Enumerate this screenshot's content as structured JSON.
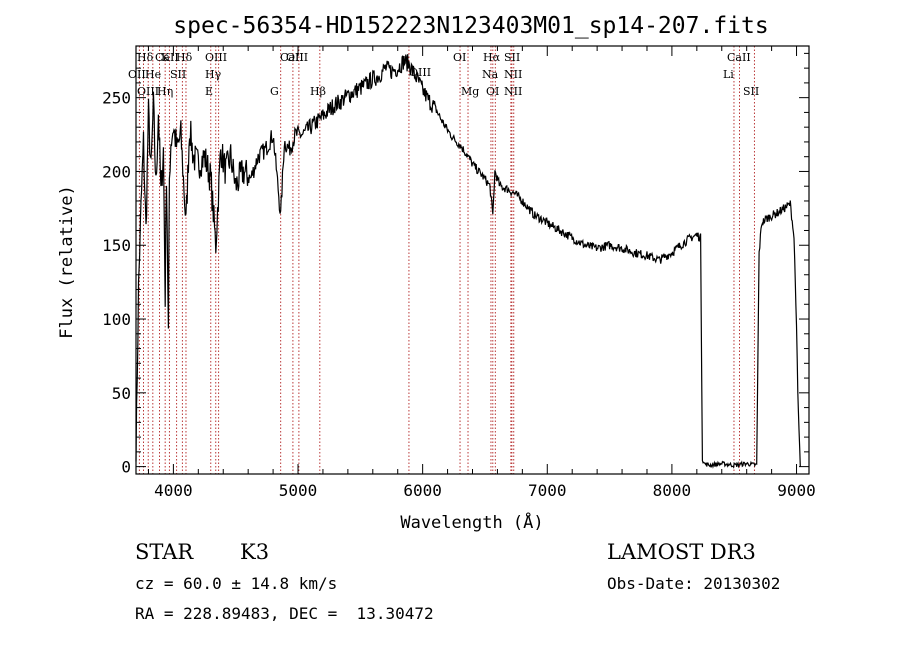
{
  "chart_data": {
    "type": "line",
    "title": "spec-56354-HD152223N123403M01_sp14-207.fits",
    "xlabel": "Wavelength (Å)",
    "ylabel": "Flux (relative)",
    "xlim": [
      3700,
      9100
    ],
    "ylim": [
      -5,
      285
    ],
    "x_ticks": [
      4000,
      5000,
      6000,
      7000,
      8000,
      9000
    ],
    "y_ticks": [
      0,
      50,
      100,
      150,
      200,
      250
    ],
    "grid": false,
    "series": [
      {
        "name": "flux",
        "x": [
          3700,
          3720,
          3740,
          3760,
          3780,
          3800,
          3820,
          3840,
          3860,
          3880,
          3900,
          3920,
          3934,
          3945,
          3960,
          3968,
          3980,
          4000,
          4030,
          4060,
          4101,
          4130,
          4160,
          4200,
          4250,
          4300,
          4340,
          4380,
          4420,
          4460,
          4500,
          4560,
          4620,
          4680,
          4740,
          4800,
          4861,
          4890,
          4930,
          4980,
          5040,
          5100,
          5170,
          5230,
          5290,
          5350,
          5410,
          5470,
          5530,
          5590,
          5650,
          5700,
          5750,
          5800,
          5850,
          5890,
          5920,
          5960,
          6000,
          6050,
          6100,
          6150,
          6200,
          6250,
          6300,
          6350,
          6400,
          6450,
          6500,
          6540,
          6563,
          6580,
          6620,
          6680,
          6740,
          6800,
          6850,
          6900,
          6950,
          7000,
          7100,
          7200,
          7300,
          7400,
          7500,
          7600,
          7700,
          7800,
          7900,
          8000,
          8100,
          8150,
          8200,
          8230,
          8245,
          8260,
          8300,
          8400,
          8500,
          8600,
          8680,
          8700,
          8720,
          8760,
          8800,
          8850,
          8900,
          8950,
          8980,
          9000,
          9010,
          9030
        ],
        "y": [
          5,
          120,
          175,
          220,
          160,
          240,
          200,
          245,
          190,
          240,
          185,
          215,
          115,
          200,
          90,
          195,
          220,
          230,
          215,
          225,
          165,
          230,
          210,
          205,
          210,
          195,
          150,
          215,
          200,
          210,
          190,
          200,
          195,
          210,
          215,
          225,
          170,
          220,
          215,
          225,
          225,
          230,
          235,
          240,
          245,
          248,
          252,
          255,
          258,
          262,
          265,
          270,
          268,
          270,
          275,
          273,
          268,
          262,
          255,
          248,
          243,
          235,
          228,
          222,
          218,
          212,
          205,
          200,
          195,
          190,
          170,
          200,
          190,
          188,
          185,
          180,
          175,
          170,
          168,
          165,
          160,
          155,
          150,
          148,
          150,
          148,
          145,
          143,
          140,
          145,
          152,
          155,
          157,
          155,
          5,
          2,
          1,
          2,
          1,
          2,
          1,
          145,
          165,
          168,
          170,
          172,
          175,
          178,
          155,
          95,
          50,
          0
        ]
      }
    ],
    "annotations": [
      "Hδ",
      "K",
      "Hδ",
      "OIII",
      "OIII",
      "OI",
      "Hα",
      "SII",
      "CaII",
      "OII",
      "He",
      "SII",
      "Hγ",
      "OIII",
      "Na",
      "NII",
      "Li",
      "CaII",
      "OIII",
      "Hη",
      "E",
      "G",
      "Hβ",
      "Mg",
      "OI",
      "NII",
      "SII",
      "CaII"
    ]
  },
  "info": {
    "class_label": "STAR",
    "subclass_label": "K3",
    "survey_label": "LAMOST DR3",
    "cz_text": "cz = 60.0 ± 14.8 km/s",
    "obs_date_text": "Obs-Date: 20130302",
    "coords_text": "RA = 228.89483, DEC =  13.30472"
  }
}
